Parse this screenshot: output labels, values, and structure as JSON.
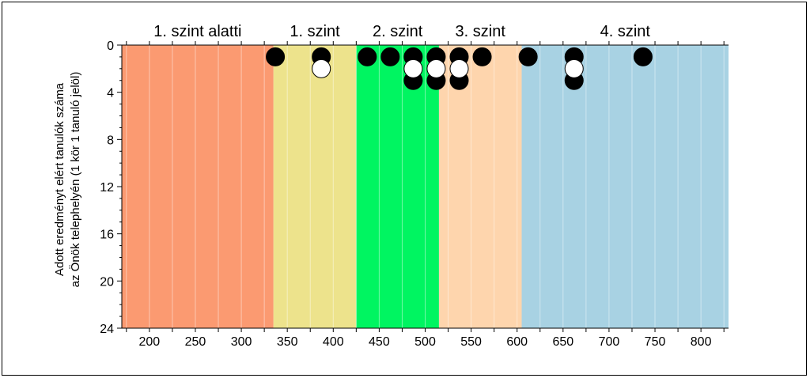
{
  "chart_data": {
    "type": "scatter",
    "title": "",
    "ylabel_lines": [
      "Adott eredményt elért tanulók száma",
      "az Önök telephelyén (1 kör 1 tanuló jelöl)"
    ],
    "xlim": [
      170,
      830
    ],
    "ylim": [
      0,
      24
    ],
    "y_inverted": true,
    "x_ticks": [
      200,
      250,
      300,
      350,
      400,
      450,
      500,
      550,
      600,
      650,
      700,
      750,
      800
    ],
    "y_ticks": [
      0,
      4,
      8,
      12,
      16,
      20,
      24
    ],
    "x_gridlines": [
      175,
      200,
      225,
      250,
      275,
      300,
      325,
      350,
      375,
      400,
      425,
      450,
      475,
      500,
      525,
      550,
      575,
      600,
      625,
      650,
      675,
      700,
      725,
      750,
      775,
      800,
      825
    ],
    "bands": [
      {
        "label": "1. szint alatti",
        "from": 170,
        "to": 335,
        "color": "#fb9a71"
      },
      {
        "label": "1. szint",
        "from": 335,
        "to": 425,
        "color": "#ede38c"
      },
      {
        "label": "2. szint",
        "from": 425,
        "to": 515,
        "color": "#00f561"
      },
      {
        "label": "3. szint",
        "from": 515,
        "to": 605,
        "color": "#fed5ad"
      },
      {
        "label": "4. szint",
        "from": 605,
        "to": 830,
        "color": "#a8d2e3"
      }
    ],
    "series": [
      {
        "marker": "filled",
        "color": "#000000",
        "points": [
          {
            "x": 337,
            "y": 1
          },
          {
            "x": 387,
            "y": 1
          },
          {
            "x": 437,
            "y": 1
          },
          {
            "x": 462,
            "y": 1
          },
          {
            "x": 487,
            "y": 1
          },
          {
            "x": 487,
            "y": 3
          },
          {
            "x": 512,
            "y": 1
          },
          {
            "x": 512,
            "y": 3
          },
          {
            "x": 537,
            "y": 1
          },
          {
            "x": 537,
            "y": 3
          },
          {
            "x": 562,
            "y": 1
          },
          {
            "x": 612,
            "y": 1
          },
          {
            "x": 662,
            "y": 1
          },
          {
            "x": 662,
            "y": 3
          },
          {
            "x": 737,
            "y": 1
          }
        ]
      },
      {
        "marker": "hollow",
        "color": "#ffffff",
        "points": [
          {
            "x": 387,
            "y": 2
          },
          {
            "x": 487,
            "y": 2
          },
          {
            "x": 512,
            "y": 2
          },
          {
            "x": 537,
            "y": 2
          },
          {
            "x": 662,
            "y": 2
          }
        ]
      }
    ]
  }
}
